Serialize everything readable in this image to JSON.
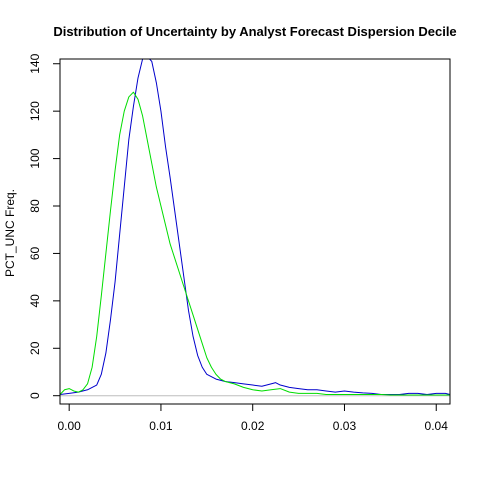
{
  "chart_data": {
    "type": "line",
    "title": "Distribution of Uncertainty by Analyst Forecast Dispersion Decile",
    "xlabel": "",
    "ylabel": "PCT_UNC Freq.",
    "xlim": [
      -0.001,
      0.0415
    ],
    "ylim": [
      -3.5,
      142
    ],
    "x_ticks": [
      0.0,
      0.01,
      0.02,
      0.03,
      0.04
    ],
    "x_tick_labels": [
      "0.00",
      "0.01",
      "0.02",
      "0.03",
      "0.04"
    ],
    "y_ticks": [
      0,
      20,
      40,
      60,
      80,
      100,
      120,
      140
    ],
    "y_tick_labels": [
      "0",
      "20",
      "40",
      "60",
      "80",
      "100",
      "120",
      "140"
    ],
    "grid": false,
    "legend": "none",
    "baseline": {
      "y": 0,
      "color": "#bebebe"
    },
    "series": [
      {
        "color": "#0000cc",
        "x": [
          -0.001,
          0.0,
          0.001,
          0.002,
          0.003,
          0.0035,
          0.004,
          0.0045,
          0.005,
          0.0055,
          0.006,
          0.0065,
          0.007,
          0.0075,
          0.008,
          0.0085,
          0.009,
          0.0095,
          0.01,
          0.0105,
          0.011,
          0.0115,
          0.012,
          0.0125,
          0.013,
          0.0135,
          0.014,
          0.0145,
          0.015,
          0.016,
          0.017,
          0.018,
          0.019,
          0.02,
          0.021,
          0.022,
          0.0225,
          0.023,
          0.024,
          0.025,
          0.026,
          0.027,
          0.028,
          0.029,
          0.03,
          0.031,
          0.032,
          0.033,
          0.034,
          0.035,
          0.036,
          0.037,
          0.038,
          0.039,
          0.04,
          0.041,
          0.0415
        ],
        "y": [
          0.5,
          1.0,
          1.5,
          2.5,
          4.5,
          9,
          18,
          32,
          48,
          68,
          88,
          108,
          122,
          134,
          142,
          143,
          141,
          132,
          120,
          105,
          92,
          78,
          64,
          50,
          36,
          25,
          17,
          12,
          9,
          7,
          6,
          5.5,
          5,
          4.5,
          4,
          5,
          5.5,
          4.5,
          3.5,
          3,
          2.5,
          2.5,
          2,
          1.5,
          2,
          1.5,
          1.2,
          1,
          0.5,
          0.5,
          0.5,
          1,
          1,
          0.5,
          1,
          1,
          0.5
        ]
      },
      {
        "color": "#00dd00",
        "x": [
          -0.001,
          -0.0005,
          0.0,
          0.0005,
          0.001,
          0.0015,
          0.002,
          0.0025,
          0.003,
          0.0035,
          0.004,
          0.0045,
          0.005,
          0.0055,
          0.006,
          0.0065,
          0.007,
          0.0075,
          0.008,
          0.0085,
          0.009,
          0.0095,
          0.01,
          0.0105,
          0.011,
          0.0115,
          0.012,
          0.0125,
          0.013,
          0.0135,
          0.014,
          0.0145,
          0.015,
          0.0155,
          0.016,
          0.0165,
          0.017,
          0.018,
          0.019,
          0.02,
          0.021,
          0.022,
          0.023,
          0.024,
          0.025,
          0.026,
          0.027,
          0.028,
          0.029,
          0.03,
          0.031,
          0.032,
          0.033,
          0.034,
          0.035,
          0.036,
          0.037,
          0.038,
          0.039,
          0.04,
          0.041,
          0.0415
        ],
        "y": [
          0.5,
          2.5,
          3.0,
          2.0,
          1.5,
          2.5,
          5,
          12,
          25,
          42,
          60,
          78,
          95,
          110,
          120,
          126,
          128,
          125,
          118,
          108,
          98,
          88,
          80,
          72,
          64,
          58,
          52,
          46,
          40,
          34,
          28,
          22,
          16,
          12,
          9,
          7,
          6,
          5,
          3.5,
          2.5,
          2,
          2.5,
          3,
          1.5,
          1.0,
          1.0,
          1.0,
          0.5,
          0.5,
          0.5,
          0.5,
          0.5,
          0.5,
          0.5,
          0.3,
          0.3,
          0.3,
          0.3,
          0.3,
          0.3,
          0.3,
          0.3
        ]
      }
    ]
  }
}
